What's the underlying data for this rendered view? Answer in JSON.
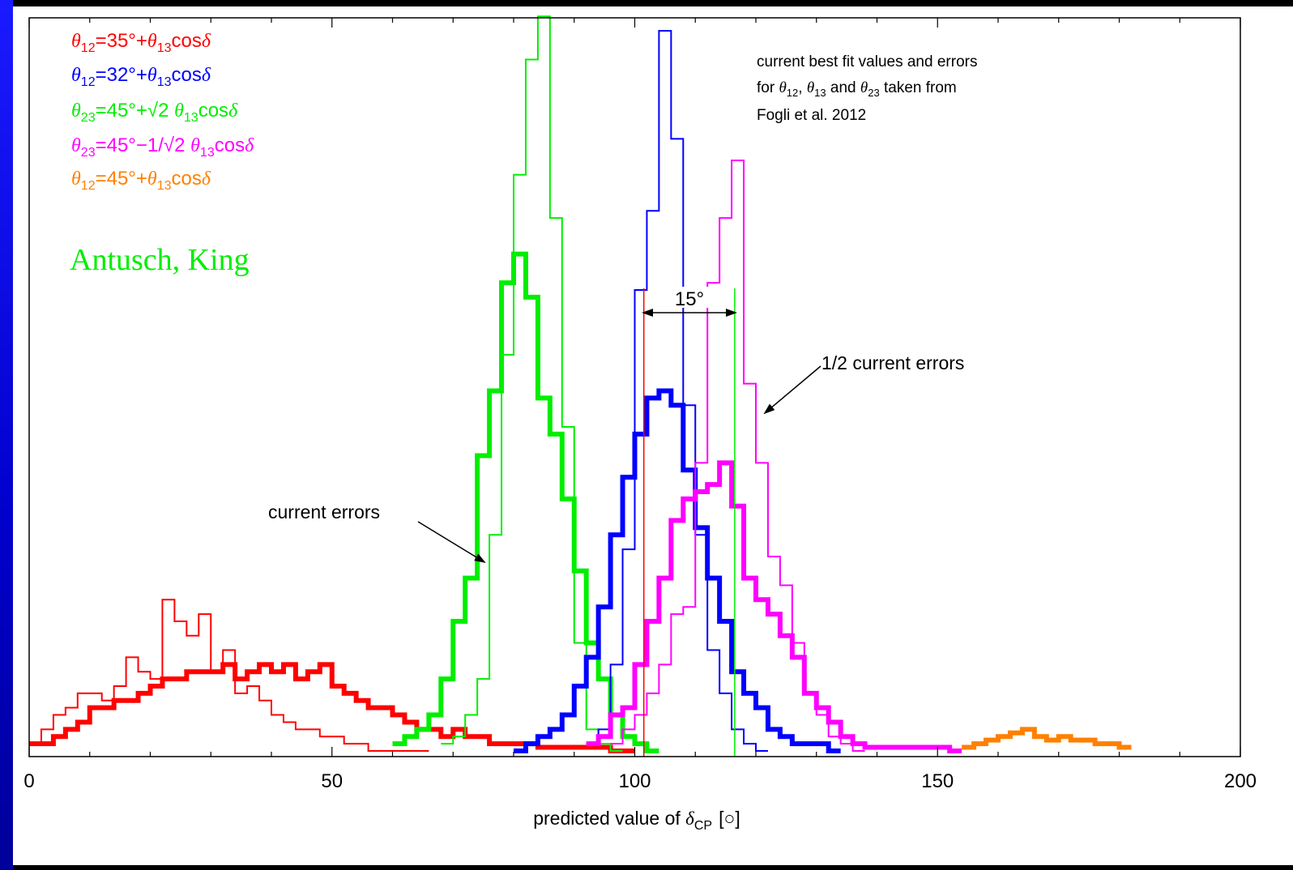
{
  "chart_data": {
    "type": "step-histogram",
    "xlabel_prefix": "predicted value of ",
    "xlabel_symbol": "δ",
    "xlabel_sub": "CP",
    "xlabel_unit": "[○]",
    "xlim": [
      0,
      200
    ],
    "x_ticks": [
      0,
      50,
      100,
      150,
      200
    ],
    "y_max": 100,
    "legend": [
      {
        "color": "#ff0000",
        "pre": "",
        "theta": "θ",
        "sub": "12",
        "rest": "=35°+",
        "theta2": "θ",
        "sub2": "13",
        "tail": "cosδ"
      },
      {
        "color": "#0000ff",
        "pre": "",
        "theta": "θ",
        "sub": "12",
        "rest": "=32°+",
        "theta2": "θ",
        "sub2": "13",
        "tail": "cosδ"
      },
      {
        "color": "#00ee00",
        "pre": "",
        "theta": "θ",
        "sub": "23",
        "rest": "=45°+√2 ",
        "theta2": "θ",
        "sub2": "13",
        "tail": "cosδ"
      },
      {
        "color": "#ff00ff",
        "pre": "",
        "theta": "θ",
        "sub": "23",
        "rest": "=45°−1/√2 ",
        "theta2": "θ",
        "sub2": "13",
        "tail": "cosδ"
      },
      {
        "color": "#ff8000",
        "pre": "",
        "theta": "θ",
        "sub": "12",
        "rest": "=45°+",
        "theta2": "θ",
        "sub2": "13",
        "tail": "cosδ"
      }
    ],
    "credit": "Antusch, King",
    "note_lines": [
      "current best fit values and errors",
      "for θ12, θ13 and θ23 taken from",
      "Fogli et al. 2012"
    ],
    "annotations": {
      "current_errors": "current errors",
      "half_errors": "1/2 current errors",
      "spacing": "15°"
    },
    "vertical_lines": [
      {
        "color": "#ff0000",
        "x": 101.5
      },
      {
        "color": "#00ee00",
        "x": 116.5
      }
    ],
    "series": [
      {
        "color": "#ff0000",
        "width": 2,
        "x0": 0,
        "dx": 2,
        "values": [
          1,
          3,
          5,
          6,
          8,
          8,
          7,
          9,
          13,
          11,
          10,
          21,
          18,
          16,
          19,
          11,
          14,
          8,
          9,
          7,
          5,
          4,
          3,
          3,
          2,
          2,
          1,
          1,
          0,
          0,
          0,
          0,
          0
        ]
      },
      {
        "color": "#ff0000",
        "width": 6,
        "x0": 0,
        "dx": 2,
        "values": [
          1,
          1,
          2,
          3,
          4,
          6,
          6,
          7,
          7,
          8,
          9,
          10,
          10,
          11,
          11,
          11,
          12,
          10,
          11,
          12,
          11,
          12,
          10,
          11,
          12,
          9,
          8,
          7,
          6,
          6,
          5,
          4,
          3,
          3,
          2,
          3,
          2,
          2,
          1,
          1,
          1,
          1,
          0.5,
          0.5,
          0.5,
          0.5,
          0.5,
          0.5,
          0,
          0
        ]
      },
      {
        "color": "#00ee00",
        "width": 2,
        "x0": 68,
        "dx": 2,
        "values": [
          1,
          2,
          5,
          10,
          30,
          55,
          80,
          96,
          102,
          74,
          45,
          15,
          3,
          1,
          0
        ]
      },
      {
        "color": "#00ee00",
        "width": 6,
        "x0": 60,
        "dx": 2,
        "values": [
          1,
          2,
          3,
          5,
          10,
          18,
          24,
          41,
          50,
          65,
          69,
          63,
          49,
          44,
          35,
          25,
          15,
          10,
          5,
          2,
          1,
          0
        ]
      },
      {
        "color": "#0000ff",
        "width": 2,
        "x0": 92,
        "dx": 2,
        "values": [
          1,
          3,
          12,
          28,
          64,
          75,
          100,
          85,
          48,
          30,
          14,
          8,
          3,
          1,
          0
        ]
      },
      {
        "color": "#0000ff",
        "width": 6,
        "x0": 80,
        "dx": 2,
        "values": [
          0,
          1,
          2,
          3,
          5,
          9,
          13,
          20,
          30,
          38,
          44,
          49,
          50,
          48,
          39,
          31,
          24,
          18,
          11,
          8,
          6,
          3,
          2,
          1,
          1,
          1,
          0
        ]
      },
      {
        "color": "#ff00ff",
        "width": 2,
        "x0": 96,
        "dx": 2,
        "values": [
          1,
          3,
          5,
          8,
          12,
          19,
          20,
          40,
          65,
          74,
          82,
          51,
          40,
          27,
          23,
          15,
          8,
          5,
          2,
          1,
          0
        ]
      },
      {
        "color": "#ff00ff",
        "width": 6,
        "x0": 92,
        "dx": 2,
        "values": [
          1,
          2,
          5,
          6,
          12,
          18,
          24,
          32,
          35,
          36,
          37,
          40,
          34,
          24,
          21,
          19,
          16,
          13,
          8,
          6,
          4,
          2,
          1,
          0.5,
          0.5,
          0.5,
          0.5,
          0.5,
          0.5,
          0.5,
          0
        ]
      },
      {
        "color": "#ff8000",
        "width": 6,
        "x0": 154,
        "dx": 2,
        "values": [
          0.5,
          1,
          1.5,
          2,
          2.5,
          3,
          2,
          1.5,
          2,
          1.5,
          1.5,
          1,
          1,
          0.5
        ]
      }
    ]
  }
}
